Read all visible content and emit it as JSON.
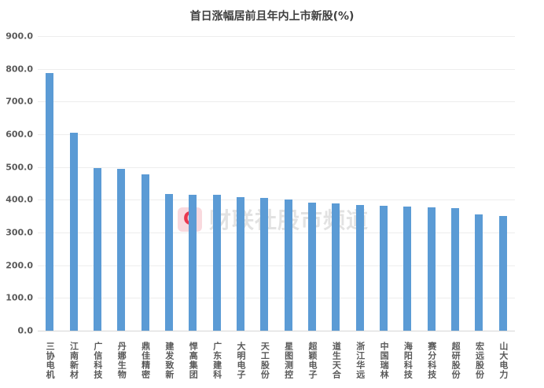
{
  "chart_data": {
    "type": "bar",
    "title": "首日涨幅居前且年内上市新股(%)",
    "categories": [
      "三协电机",
      "江南新材",
      "广信科技",
      "丹娜生物",
      "鼎佳精密",
      "建发致新",
      "悍高集团",
      "广东建科",
      "大明电子",
      "天工股份",
      "星图测控",
      "超颖电子",
      "道生天合",
      "浙江华远",
      "中国瑞林",
      "海阳科技",
      "赛分科技",
      "超研股份",
      "宏远股份",
      "山大电力"
    ],
    "values": [
      786,
      605,
      497,
      495,
      477,
      417,
      416,
      415,
      409,
      406,
      401,
      392,
      389,
      384,
      381,
      380,
      377,
      375,
      354,
      350
    ],
    "xlabel": "",
    "ylabel": "",
    "ylim": [
      0,
      900
    ],
    "ytick_step": 100,
    "ytick_labels_top_to_bottom": [
      "900.0",
      "800.0",
      "700.0",
      "600.0",
      "500.0",
      "400.0",
      "300.0",
      "200.0",
      "100.0",
      "0.0"
    ],
    "grid": true,
    "legend_position": "none",
    "bar_color": "#5b9bd5",
    "gridline_color": "#ededed",
    "axis_line_color": "#d6d6d6",
    "label_color": "#595959",
    "title_color": "#404040"
  },
  "watermark": {
    "logo_letter": "C",
    "logo_name": "cailianshe-logo-icon",
    "text": "财联社股市频道",
    "logo_color": "#e8374f",
    "logo_bg": "#f9d9de"
  }
}
